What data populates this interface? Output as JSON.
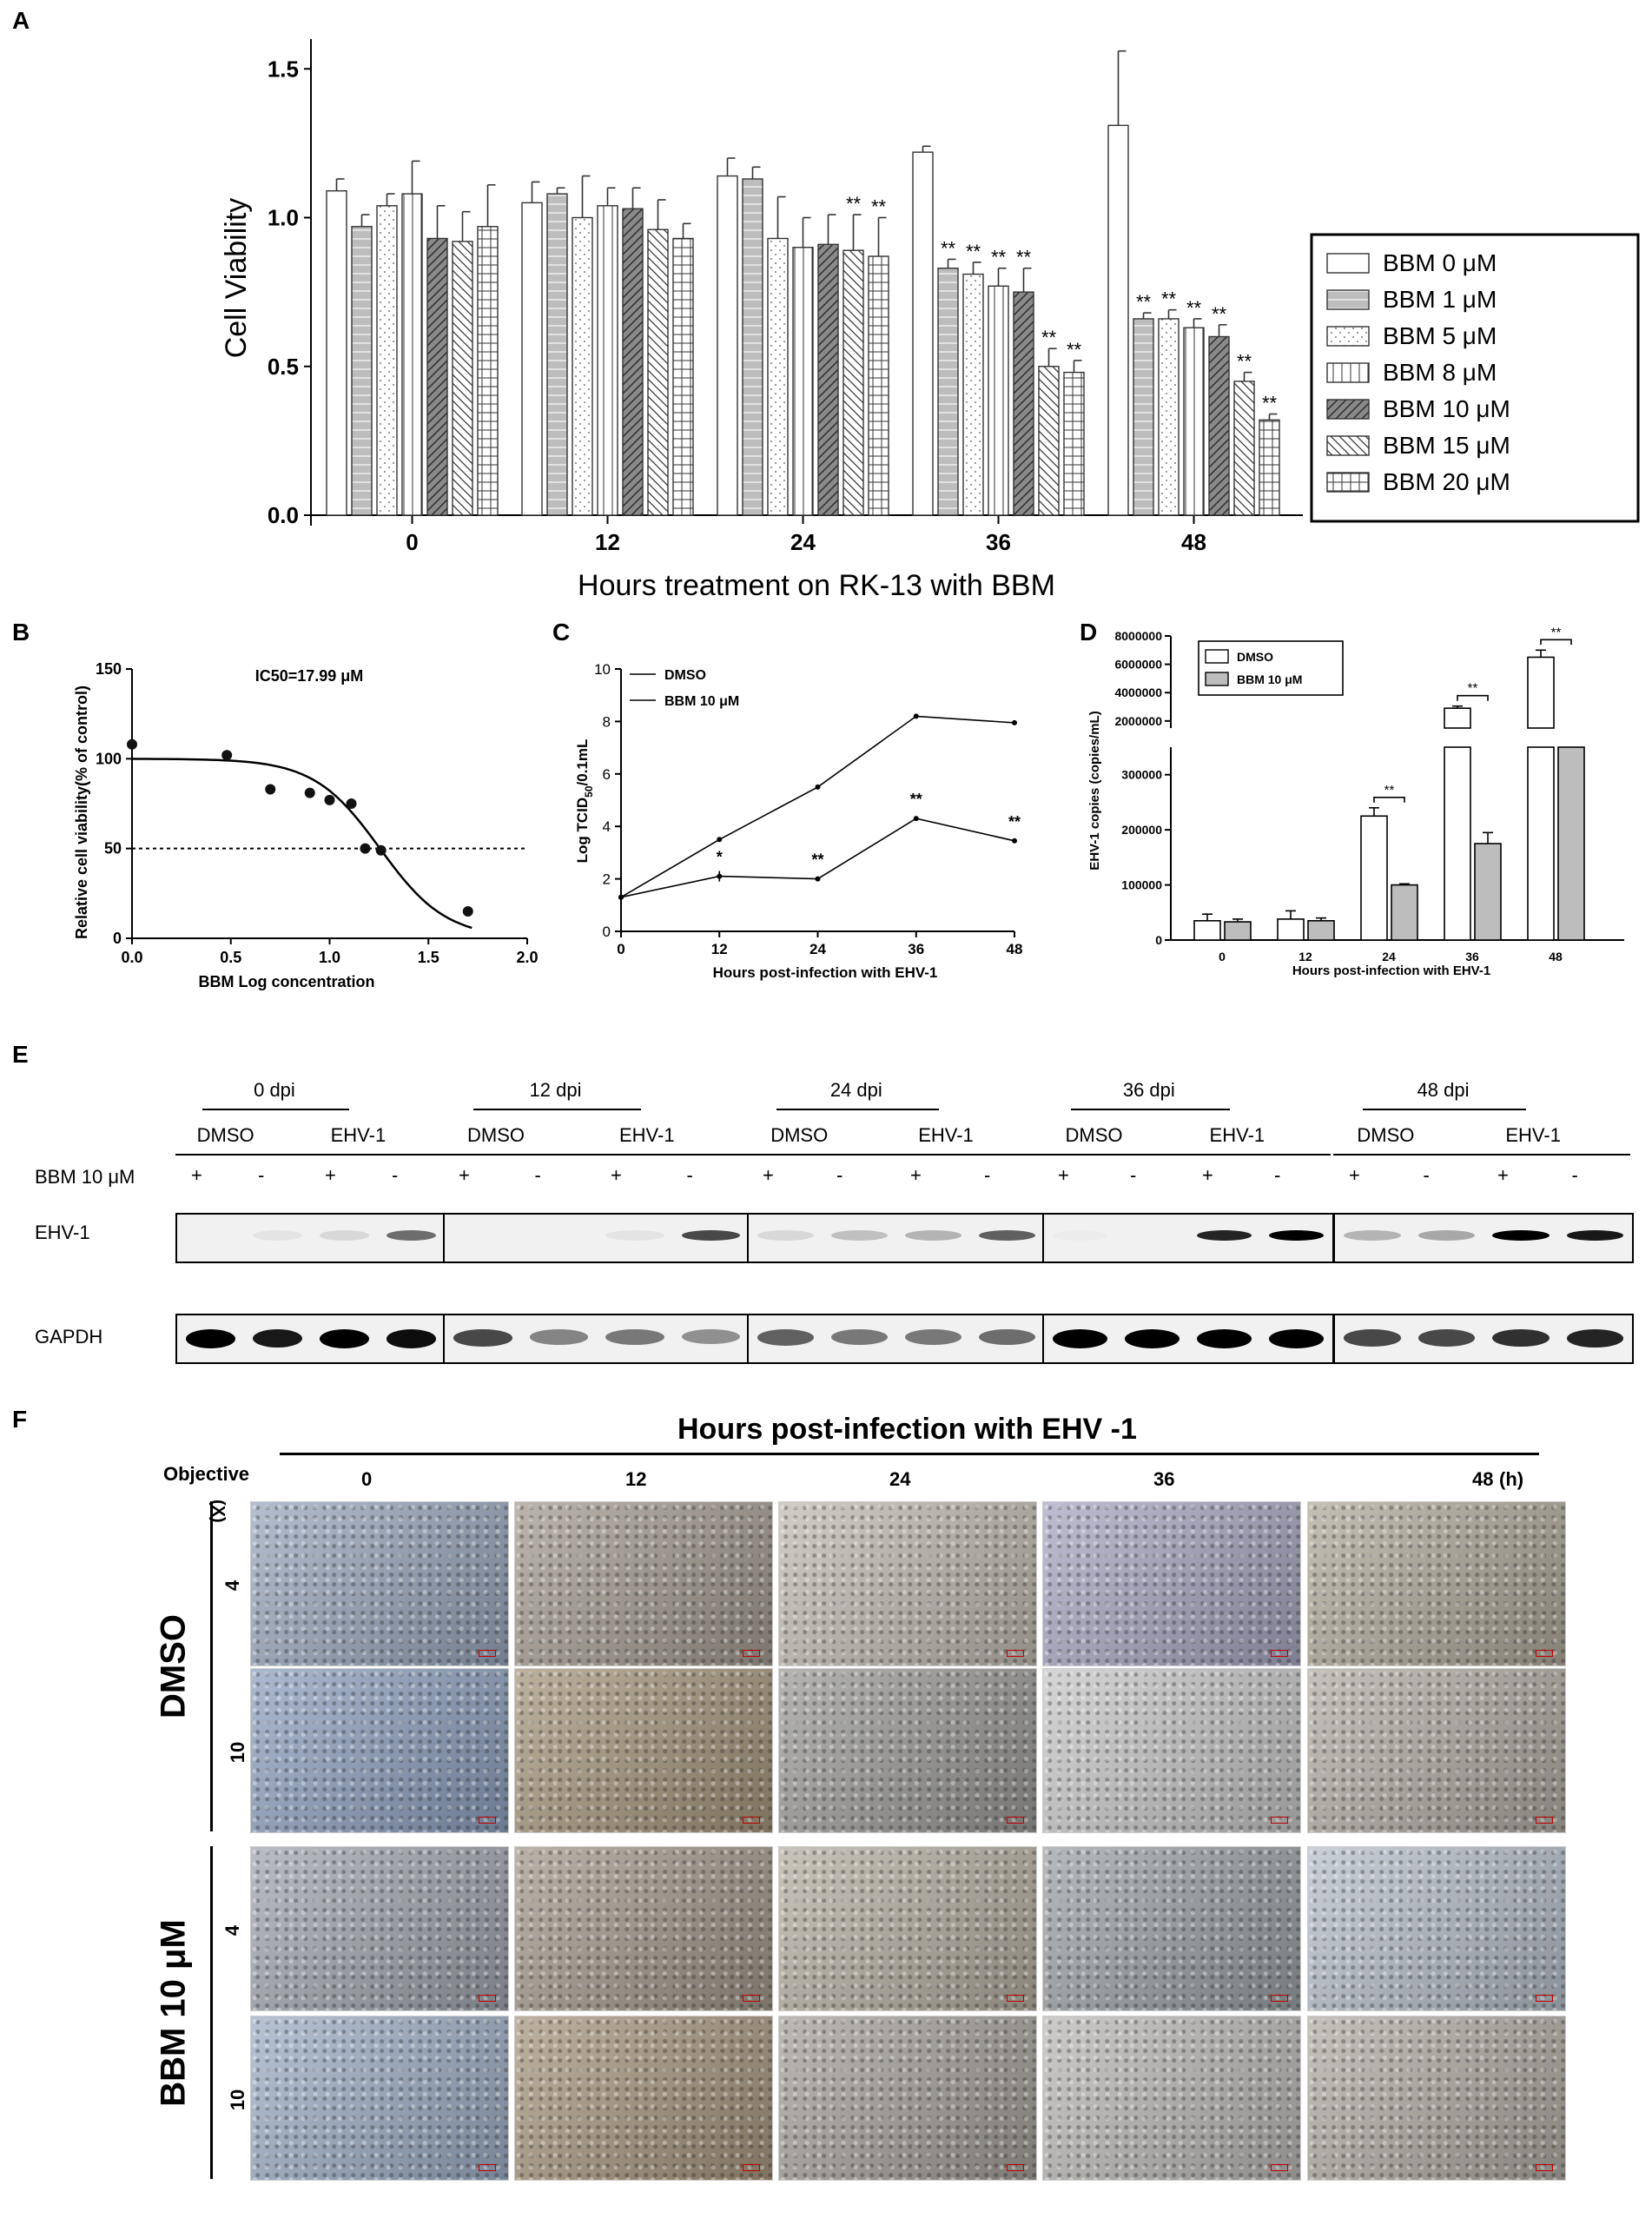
{
  "panels": {
    "A": "A",
    "B": "B",
    "C": "C",
    "D": "D",
    "E": "E",
    "F": "F"
  },
  "chart_data": [
    {
      "id": "A",
      "type": "bar",
      "xlabel": "Hours treatment on RK-13 with BBM",
      "ylabel": "Cell Viability",
      "ylim": [
        0,
        1.6
      ],
      "yticks": [
        "0.0",
        "0.5",
        "1.0",
        "1.5"
      ],
      "categories": [
        "0",
        "12",
        "24",
        "36",
        "48"
      ],
      "series": [
        {
          "name": "BBM 0 μM",
          "pattern": "blank",
          "values": [
            1.09,
            1.05,
            1.14,
            1.22,
            1.31
          ],
          "errors": [
            0.04,
            0.07,
            0.06,
            0.02,
            0.25
          ],
          "stars": [
            "",
            "",
            "",
            "",
            ""
          ]
        },
        {
          "name": "BBM 1 μM",
          "pattern": "brick",
          "values": [
            0.97,
            1.08,
            1.13,
            0.83,
            0.66
          ],
          "errors": [
            0.04,
            0.02,
            0.04,
            0.03,
            0.02
          ],
          "stars": [
            "",
            "",
            "",
            "**",
            "**"
          ]
        },
        {
          "name": "BBM 5 μM",
          "pattern": "dots",
          "values": [
            1.04,
            1.0,
            0.93,
            0.81,
            0.66
          ],
          "errors": [
            0.04,
            0.14,
            0.14,
            0.04,
            0.03
          ],
          "stars": [
            "",
            "",
            "",
            "**",
            "**"
          ]
        },
        {
          "name": "BBM 8 μM",
          "pattern": "vlines",
          "values": [
            1.08,
            1.04,
            0.9,
            0.77,
            0.63
          ],
          "errors": [
            0.11,
            0.06,
            0.1,
            0.06,
            0.03
          ],
          "stars": [
            "",
            "",
            "",
            "**",
            "**"
          ]
        },
        {
          "name": "BBM 10 μM",
          "pattern": "diag",
          "values": [
            0.93,
            1.03,
            0.91,
            0.75,
            0.6
          ],
          "errors": [
            0.11,
            0.07,
            0.1,
            0.08,
            0.04
          ],
          "stars": [
            "",
            "",
            "",
            "**",
            "**"
          ]
        },
        {
          "name": "BBM 15 μM",
          "pattern": "bdiag",
          "values": [
            0.92,
            0.96,
            0.89,
            0.5,
            0.45
          ],
          "errors": [
            0.1,
            0.1,
            0.12,
            0.06,
            0.03
          ],
          "stars": [
            "",
            "",
            "**",
            "**",
            "**"
          ]
        },
        {
          "name": "BBM 20 μM",
          "pattern": "grid",
          "values": [
            0.97,
            0.93,
            0.87,
            0.48,
            0.32
          ],
          "errors": [
            0.14,
            0.05,
            0.13,
            0.04,
            0.02
          ],
          "stars": [
            "",
            "",
            "**",
            "**",
            "**"
          ]
        }
      ]
    },
    {
      "id": "B",
      "type": "scatter",
      "title": "IC50=17.99 μM",
      "xlabel": "BBM Log concentration",
      "ylabel": "Relative cell viability(% of control)",
      "xlim": [
        0.0,
        2.0
      ],
      "ylim": [
        0,
        150
      ],
      "xticks": [
        "0.0",
        "0.5",
        "1.0",
        "1.5",
        "2.0"
      ],
      "yticks": [
        "0",
        "50",
        "100",
        "150"
      ],
      "reference_line_y": 50,
      "points": [
        [
          0.0,
          108
        ],
        [
          0.48,
          102
        ],
        [
          0.7,
          83
        ],
        [
          0.9,
          81
        ],
        [
          1.0,
          77
        ],
        [
          1.11,
          75
        ],
        [
          1.18,
          50
        ],
        [
          1.26,
          49
        ],
        [
          1.7,
          15
        ]
      ],
      "fit_ic50_log": 1.255
    },
    {
      "id": "C",
      "type": "line",
      "xlabel": "Hours post-infection with EHV-1",
      "ylabel": "Log TCID",
      "ylabel_sub": "50",
      "ylabel_tail": "/0.1mL",
      "xlim": [
        0,
        48
      ],
      "ylim": [
        0,
        10
      ],
      "xticks": [
        "0",
        "12",
        "24",
        "36",
        "48"
      ],
      "yticks": [
        "0",
        "2",
        "4",
        "6",
        "8",
        "10"
      ],
      "x": [
        0,
        12,
        24,
        36,
        48
      ],
      "series": [
        {
          "name": "DMSO",
          "values": [
            1.3,
            3.5,
            5.5,
            8.2,
            7.95
          ]
        },
        {
          "name": "BBM 10 μM",
          "values": [
            1.3,
            2.1,
            2.0,
            4.3,
            3.45
          ],
          "stars": [
            "",
            "*",
            "**",
            "**",
            "**"
          ]
        }
      ]
    },
    {
      "id": "D",
      "type": "bar",
      "xlabel": "Hours post-infection with EHV-1",
      "ylabel": "EHV-1  copies (copies/mL)",
      "categories": [
        "0",
        "12",
        "24",
        "36",
        "48"
      ],
      "yticks_lower": [
        "0",
        "100000",
        "200000",
        "300000"
      ],
      "yticks_upper": [
        "2000000",
        "4000000",
        "6000000",
        "8000000"
      ],
      "series": [
        {
          "name": "DMSO",
          "values": [
            35000,
            38000,
            225000,
            2900000,
            6500000
          ],
          "errors": [
            12000,
            15000,
            15000,
            150000,
            500000
          ]
        },
        {
          "name": "BBM 10 μM",
          "values": [
            33000,
            35000,
            100000,
            175000,
            1300000
          ],
          "errors": [
            5000,
            5000,
            2000,
            20000,
            0
          ]
        }
      ],
      "significance": [
        "",
        "",
        "**",
        "**",
        "**"
      ]
    }
  ],
  "blot": {
    "groups": [
      {
        "dpi": "0 dpi",
        "left": "DMSO",
        "right": "EHV-1"
      },
      {
        "dpi": "12 dpi",
        "left": "DMSO",
        "right": "EHV-1"
      },
      {
        "dpi": "24 dpi",
        "left": "DMSO",
        "right": "EHV-1"
      },
      {
        "dpi": "36 dpi",
        "left": "DMSO",
        "right": "EHV-1"
      },
      {
        "dpi": "48 dpi",
        "left": "DMSO",
        "right": "EHV-1"
      }
    ],
    "treatment_label": "BBM 10 μM",
    "signs": [
      "+",
      "-",
      "+",
      "-"
    ],
    "row1_label": "EHV-1",
    "row2_label": "GAPDH"
  },
  "micro": {
    "header": "Hours post-infection with EHV -1",
    "objective_label": "Objective",
    "magnification_unit": "(X)",
    "time_unit": "(h)",
    "times": [
      "0",
      "12",
      "24",
      "36",
      "48"
    ],
    "groups": [
      {
        "name": "DMSO",
        "mags": [
          "4",
          "10"
        ]
      },
      {
        "name": "BBM 10 μM",
        "mags": [
          "4",
          "10"
        ]
      }
    ],
    "tints": [
      [
        "#9aa8bf",
        "#a59d93",
        "#c2bdb4",
        "#a9a8c4",
        "#b2ab9c"
      ],
      [
        "#8fa3c0",
        "#a8987f",
        "#9d9c9a",
        "#c9c9c9",
        "#b3aea6"
      ],
      [
        "#a3a7b0",
        "#a49a8c",
        "#b8b1a3",
        "#9ea3a6",
        "#b8c1ca"
      ],
      [
        "#9fb0c8",
        "#aa9880",
        "#a7a39d",
        "#bdbbb8",
        "#b3aea6"
      ]
    ]
  }
}
